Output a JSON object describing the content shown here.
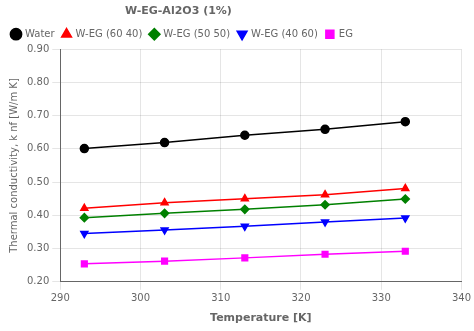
{
  "chart_data": {
    "type": "line",
    "legend_title": "W-EG-Al2O3 (1%)",
    "xlabel": "Temperature [K]",
    "ylabel": "Thermal conductivity, k nf [W/m K]",
    "xlim": [
      290,
      340
    ],
    "xticks": [
      290,
      300,
      310,
      320,
      330,
      340
    ],
    "ylim": [
      0.2,
      0.9
    ],
    "yticks": [
      {
        "value": 0.2,
        "label": "0.20"
      },
      {
        "value": 0.3,
        "label": "0.30"
      },
      {
        "value": 0.4,
        "label": "0.40"
      },
      {
        "value": 0.5,
        "label": "0.50"
      },
      {
        "value": 0.6,
        "label": "0.60"
      },
      {
        "value": 0.7,
        "label": "0.70"
      },
      {
        "value": 0.8,
        "label": "0.80"
      },
      {
        "value": 0.9,
        "label": "0.90"
      }
    ],
    "grid": true,
    "legend": "upper left",
    "series": [
      {
        "name": "Water",
        "color": "#000000",
        "marker": "circle",
        "x": [
          293,
          303,
          313,
          323,
          333
        ],
        "values": [
          0.601,
          0.619,
          0.641,
          0.659,
          0.682
        ]
      },
      {
        "name": "W-EG (60 40)",
        "color": "#ff0000",
        "marker": "triangle",
        "x": [
          293,
          303,
          313,
          323,
          333
        ],
        "values": [
          0.421,
          0.438,
          0.45,
          0.462,
          0.481
        ]
      },
      {
        "name": "W-EG (50 50)",
        "color": "#008000",
        "marker": "diamond",
        "x": [
          293,
          303,
          313,
          323,
          333
        ],
        "values": [
          0.393,
          0.406,
          0.418,
          0.432,
          0.449
        ]
      },
      {
        "name": "W-EG (40 60)",
        "color": "#0000ff",
        "marker": "triangle-down",
        "x": [
          293,
          303,
          313,
          323,
          333
        ],
        "values": [
          0.345,
          0.356,
          0.367,
          0.38,
          0.392
        ]
      },
      {
        "name": "EG",
        "color": "#ff00ff",
        "marker": "square",
        "x": [
          293,
          303,
          313,
          323,
          333
        ],
        "values": [
          0.254,
          0.262,
          0.272,
          0.283,
          0.292
        ]
      }
    ]
  }
}
